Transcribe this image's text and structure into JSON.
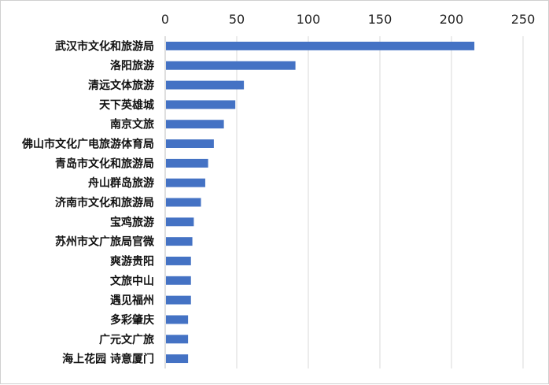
{
  "chart_data": {
    "type": "bar",
    "orientation": "horizontal",
    "categories": [
      "武汉市文化和旅游局",
      "洛阳旅游",
      "清远文体旅游",
      "天下英雄城",
      "南京文旅",
      "佛山市文化广电旅游体育局",
      "青岛市文化和旅游局",
      "舟山群岛旅游",
      "济南市文化和旅游局",
      "宝鸡旅游",
      "苏州市文广旅局官微",
      "爽游贵阳",
      "文旅中山",
      "遇见福州",
      "多彩肇庆",
      "广元文广旅",
      "海上花园 诗意厦门"
    ],
    "values": [
      216,
      91,
      55,
      49,
      41,
      34,
      30,
      28,
      25,
      20,
      19,
      18,
      18,
      18,
      16,
      16,
      16
    ],
    "xlim": [
      0,
      250
    ],
    "xticks": [
      0,
      50,
      100,
      150,
      200,
      250
    ],
    "axis_position": "top",
    "grid": true,
    "bar_color": "#4472c4",
    "title": "",
    "xlabel": "",
    "ylabel": ""
  }
}
